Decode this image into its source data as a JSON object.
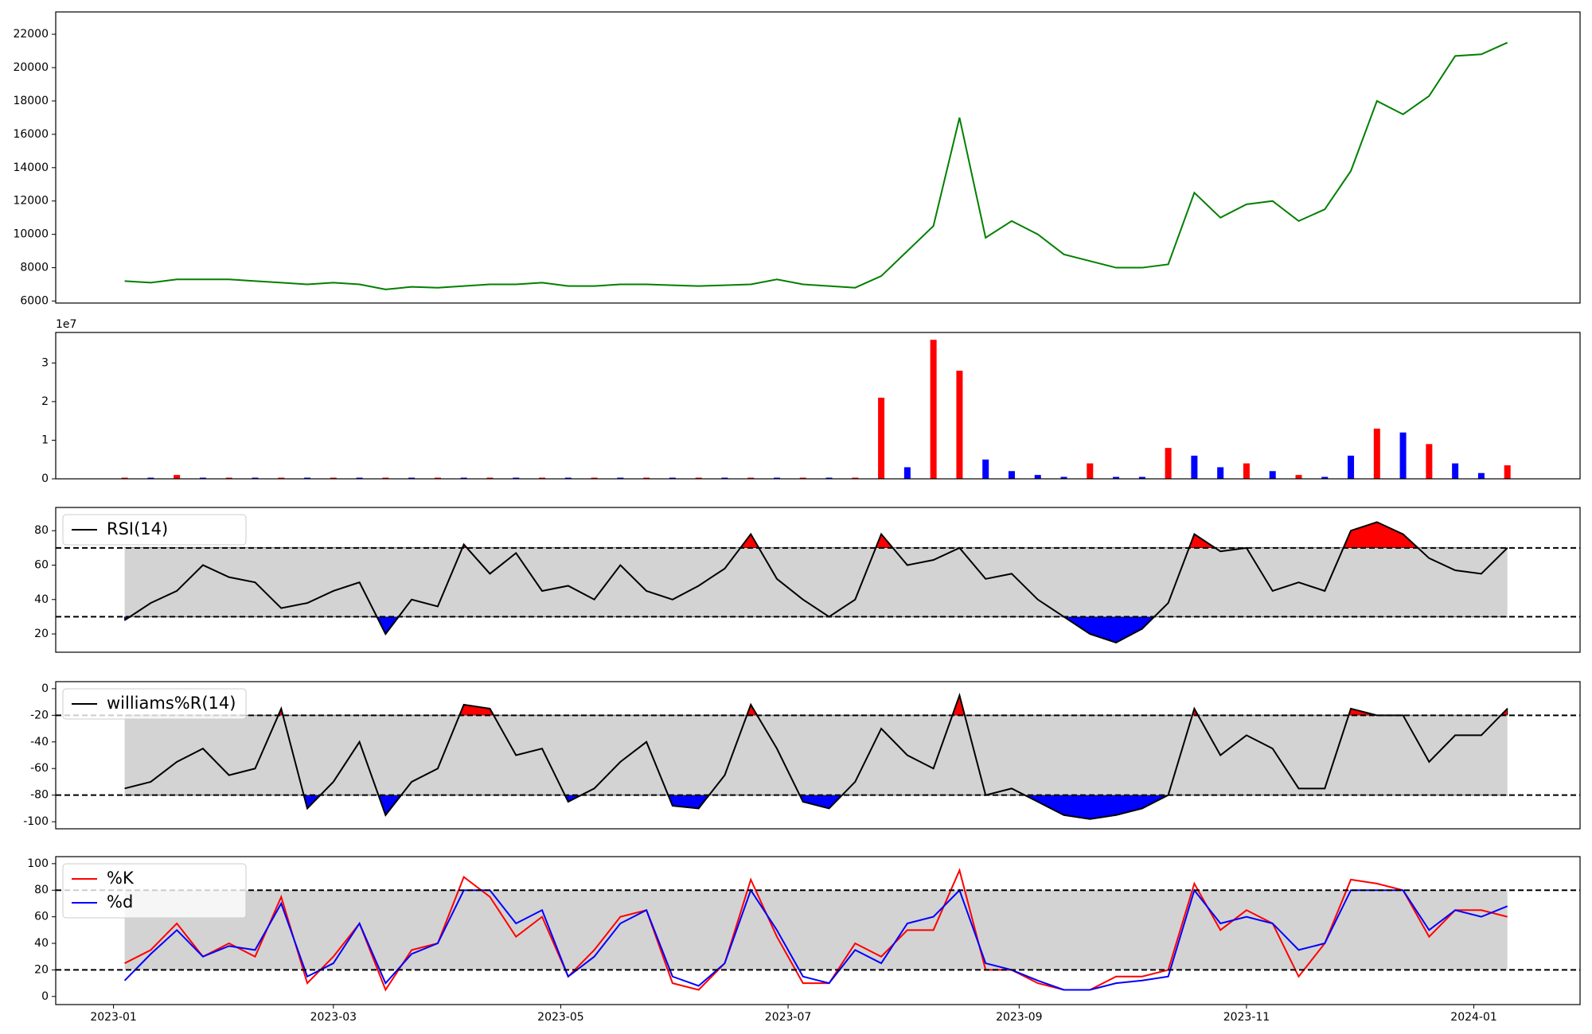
{
  "chart_data": [
    {
      "type": "line",
      "color": "#008000",
      "x": [
        3,
        10,
        17,
        24,
        31,
        38,
        45,
        52,
        59,
        66,
        73,
        80,
        87,
        94,
        101,
        108,
        115,
        122,
        129,
        136,
        143,
        150,
        157,
        164,
        171,
        178,
        185,
        192,
        199,
        206,
        213,
        220,
        227,
        234,
        241,
        248,
        255,
        262,
        269,
        276,
        283,
        290,
        297,
        304,
        311,
        318,
        325,
        332,
        339,
        346,
        353,
        360,
        367,
        374
      ],
      "values": [
        7200,
        7100,
        7300,
        7300,
        7300,
        7200,
        7100,
        7000,
        7100,
        7000,
        6700,
        6850,
        6800,
        6900,
        7000,
        7000,
        7100,
        6900,
        6900,
        7000,
        7000,
        6950,
        6900,
        6950,
        7000,
        7300,
        7000,
        6900,
        6800,
        7500,
        9000,
        10500,
        17000,
        9800,
        10800,
        10000,
        8800,
        8400,
        8000,
        8000,
        8200,
        12500,
        11000,
        11800,
        12000,
        10800,
        11500,
        13800,
        18000,
        17200,
        18300,
        20700,
        20800,
        21500
      ],
      "xlim": [
        -15.5,
        393.5
      ],
      "ylim": [
        5880,
        23340
      ],
      "yticks": [
        6000,
        8000,
        10000,
        12000,
        14000,
        16000,
        18000,
        20000,
        22000
      ]
    },
    {
      "type": "bar",
      "y_offset_label": "1e7",
      "x": [
        3,
        10,
        17,
        24,
        31,
        38,
        45,
        52,
        59,
        66,
        73,
        80,
        87,
        94,
        101,
        108,
        115,
        122,
        129,
        136,
        143,
        150,
        157,
        164,
        171,
        178,
        185,
        192,
        199,
        206,
        213,
        220,
        227,
        234,
        241,
        248,
        255,
        262,
        269,
        276,
        283,
        290,
        297,
        304,
        311,
        318,
        325,
        332,
        339,
        346,
        353,
        360,
        367,
        374
      ],
      "values": [
        0.03,
        0.03,
        0.1,
        0.03,
        0.03,
        0.03,
        0.03,
        0.03,
        0.03,
        0.03,
        0.03,
        0.03,
        0.03,
        0.03,
        0.03,
        0.03,
        0.03,
        0.03,
        0.03,
        0.03,
        0.03,
        0.03,
        0.03,
        0.03,
        0.03,
        0.03,
        0.03,
        0.03,
        0.03,
        2.1,
        0.3,
        3.6,
        2.8,
        0.5,
        0.2,
        0.1,
        0.05,
        0.4,
        0.05,
        0.05,
        0.8,
        0.6,
        0.3,
        0.4,
        0.2,
        0.1,
        0.05,
        0.6,
        1.3,
        1.2,
        0.9,
        0.4,
        0.15,
        0.35
      ],
      "colors": [
        "red",
        "blue",
        "red",
        "blue",
        "red",
        "blue",
        "red",
        "blue",
        "red",
        "blue",
        "red",
        "blue",
        "red",
        "blue",
        "red",
        "blue",
        "red",
        "blue",
        "red",
        "blue",
        "red",
        "blue",
        "red",
        "blue",
        "red",
        "blue",
        "red",
        "blue",
        "red",
        "red",
        "blue",
        "red",
        "red",
        "blue",
        "blue",
        "blue",
        "blue",
        "red",
        "blue",
        "blue",
        "red",
        "blue",
        "blue",
        "red",
        "blue",
        "red",
        "blue",
        "blue",
        "red",
        "blue",
        "red",
        "blue",
        "blue",
        "red"
      ],
      "xlim": [
        -15.5,
        393.5
      ],
      "ylim": [
        0,
        3.79
      ],
      "yticks": [
        0,
        1,
        2,
        3
      ]
    },
    {
      "type": "area",
      "legend": "upper left",
      "band_color": "#d3d3d3",
      "above_color": "red",
      "below_color": "blue",
      "thresholds": [
        30,
        70
      ],
      "x": [
        3,
        10,
        17,
        24,
        31,
        38,
        45,
        52,
        59,
        66,
        73,
        80,
        87,
        94,
        101,
        108,
        115,
        122,
        129,
        136,
        143,
        150,
        157,
        164,
        171,
        178,
        185,
        192,
        199,
        206,
        213,
        220,
        227,
        234,
        241,
        248,
        255,
        262,
        269,
        276,
        283,
        290,
        297,
        304,
        311,
        318,
        325,
        332,
        339,
        346,
        353,
        360,
        367,
        374
      ],
      "series": [
        {
          "name": "RSI(14)",
          "color": "black",
          "values": [
            28,
            38,
            45,
            60,
            53,
            50,
            35,
            38,
            45,
            50,
            20,
            40,
            36,
            72,
            55,
            67,
            45,
            48,
            40,
            60,
            45,
            40,
            48,
            58,
            78,
            52,
            40,
            30,
            40,
            78,
            60,
            63,
            70,
            52,
            55,
            40,
            30,
            20,
            15,
            23,
            38,
            78,
            68,
            70,
            45,
            50,
            45,
            80,
            85,
            78,
            64,
            57,
            55,
            70
          ]
        }
      ],
      "xlim": [
        -15.5,
        393.5
      ],
      "ylim": [
        9.4,
        93.5
      ],
      "yticks": [
        20,
        40,
        60,
        80
      ]
    },
    {
      "type": "area",
      "legend": "upper left",
      "band_color": "#d3d3d3",
      "above_color": "red",
      "below_color": "blue",
      "thresholds": [
        -80,
        -20
      ],
      "x": [
        3,
        10,
        17,
        24,
        31,
        38,
        45,
        52,
        59,
        66,
        73,
        80,
        87,
        94,
        101,
        108,
        115,
        122,
        129,
        136,
        143,
        150,
        157,
        164,
        171,
        178,
        185,
        192,
        199,
        206,
        213,
        220,
        227,
        234,
        241,
        248,
        255,
        262,
        269,
        276,
        283,
        290,
        297,
        304,
        311,
        318,
        325,
        332,
        339,
        346,
        353,
        360,
        367,
        374
      ],
      "series": [
        {
          "name": "williams%R(14)",
          "color": "black",
          "values": [
            -75,
            -70,
            -55,
            -45,
            -65,
            -60,
            -15,
            -90,
            -70,
            -40,
            -95,
            -70,
            -60,
            -12,
            -15,
            -50,
            -45,
            -85,
            -75,
            -55,
            -40,
            -88,
            -90,
            -65,
            -12,
            -45,
            -85,
            -90,
            -70,
            -30,
            -50,
            -60,
            -5,
            -80,
            -75,
            -85,
            -95,
            -98,
            -95,
            -90,
            -80,
            -15,
            -50,
            -35,
            -45,
            -75,
            -75,
            -15,
            -20,
            -20,
            -55,
            -35,
            -35,
            -15
          ]
        }
      ],
      "xlim": [
        -15.5,
        393.5
      ],
      "ylim": [
        -105.3,
        5.3
      ],
      "yticks": [
        -100,
        -80,
        -60,
        -40,
        -20,
        0
      ]
    },
    {
      "type": "line",
      "legend": "upper left",
      "band_color": "#d3d3d3",
      "thresholds": [
        20,
        80
      ],
      "x": [
        3,
        10,
        17,
        24,
        31,
        38,
        45,
        52,
        59,
        66,
        73,
        80,
        87,
        94,
        101,
        108,
        115,
        122,
        129,
        136,
        143,
        150,
        157,
        164,
        171,
        178,
        185,
        192,
        199,
        206,
        213,
        220,
        227,
        234,
        241,
        248,
        255,
        262,
        269,
        276,
        283,
        290,
        297,
        304,
        311,
        318,
        325,
        332,
        339,
        346,
        353,
        360,
        367,
        374
      ],
      "series": [
        {
          "name": "%K",
          "color": "red",
          "values": [
            25,
            35,
            55,
            30,
            40,
            30,
            75,
            10,
            30,
            55,
            5,
            35,
            40,
            90,
            75,
            45,
            60,
            15,
            35,
            60,
            65,
            10,
            5,
            25,
            88,
            45,
            10,
            10,
            40,
            30,
            50,
            50,
            95,
            20,
            20,
            10,
            5,
            5,
            15,
            15,
            20,
            85,
            50,
            65,
            55,
            15,
            40,
            88,
            85,
            80,
            45,
            65,
            65,
            60
          ]
        },
        {
          "name": "%d",
          "color": "blue",
          "values": [
            12,
            32,
            50,
            30,
            38,
            35,
            70,
            15,
            25,
            55,
            10,
            32,
            40,
            80,
            80,
            55,
            65,
            15,
            30,
            55,
            65,
            15,
            8,
            25,
            80,
            50,
            15,
            10,
            35,
            25,
            55,
            60,
            80,
            25,
            20,
            12,
            5,
            5,
            10,
            12,
            15,
            80,
            55,
            60,
            55,
            35,
            40,
            80,
            80,
            80,
            50,
            65,
            60,
            68
          ]
        }
      ],
      "xlim": [
        -15.5,
        393.5
      ],
      "ylim": [
        -6.1,
        105.3
      ],
      "yticks": [
        0,
        20,
        40,
        60,
        80,
        100
      ],
      "xticks": [
        {
          "value": 0,
          "label": "2023-01"
        },
        {
          "value": 59,
          "label": "2023-03"
        },
        {
          "value": 120,
          "label": "2023-05"
        },
        {
          "value": 181,
          "label": "2023-07"
        },
        {
          "value": 243,
          "label": "2023-09"
        },
        {
          "value": 304,
          "label": "2023-11"
        },
        {
          "value": 365,
          "label": "2024-01"
        }
      ]
    }
  ]
}
